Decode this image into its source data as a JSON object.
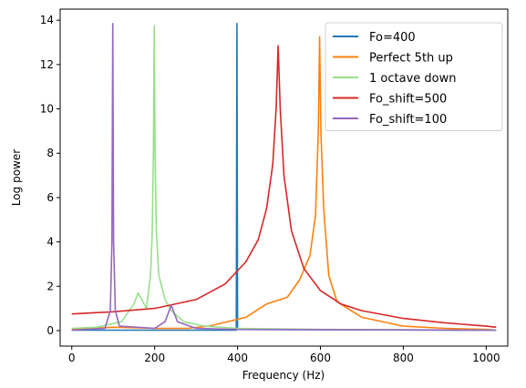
{
  "chart_data": {
    "type": "line",
    "title": "",
    "xlabel": "Frequency (Hz)",
    "ylabel": "Log power",
    "xlim": [
      -28,
      1052
    ],
    "ylim": [
      -0.7,
      14.5
    ],
    "xticks": [
      0,
      200,
      400,
      600,
      800,
      1000
    ],
    "yticks": [
      0,
      2,
      4,
      6,
      8,
      10,
      12,
      14
    ],
    "grid": false,
    "legend_position": "top-right",
    "series": [
      {
        "name": "Fo=400",
        "color": "#1f77b4",
        "points": [
          [
            0,
            0.02
          ],
          [
            397,
            0.02
          ],
          [
            398.5,
            13.85
          ],
          [
            400,
            0.05
          ],
          [
            1024,
            0.02
          ]
        ]
      },
      {
        "name": "Perfect 5th up",
        "color": "#ff7f0e",
        "points": [
          [
            0,
            0.05
          ],
          [
            100,
            0.15
          ],
          [
            200,
            0.1
          ],
          [
            280,
            0.1
          ],
          [
            330,
            0.2
          ],
          [
            420,
            0.6
          ],
          [
            470,
            1.2
          ],
          [
            520,
            1.5
          ],
          [
            550,
            2.3
          ],
          [
            575,
            3.4
          ],
          [
            588,
            5.2
          ],
          [
            595,
            9.0
          ],
          [
            598,
            13.25
          ],
          [
            601,
            9.0
          ],
          [
            608,
            5.5
          ],
          [
            620,
            2.5
          ],
          [
            640,
            1.3
          ],
          [
            700,
            0.6
          ],
          [
            800,
            0.2
          ],
          [
            900,
            0.1
          ],
          [
            1000,
            0.05
          ],
          [
            1024,
            0.02
          ]
        ]
      },
      {
        "name": "1 octave down",
        "color": "#98df8a",
        "points": [
          [
            0,
            0.1
          ],
          [
            60,
            0.15
          ],
          [
            120,
            0.4
          ],
          [
            150,
            1.2
          ],
          [
            160,
            1.7
          ],
          [
            180,
            1.0
          ],
          [
            190,
            2.5
          ],
          [
            194,
            4.3
          ],
          [
            197,
            8.0
          ],
          [
            199,
            13.75
          ],
          [
            201,
            8.0
          ],
          [
            204,
            4.5
          ],
          [
            210,
            2.5
          ],
          [
            225,
            1.4
          ],
          [
            240,
            0.9
          ],
          [
            270,
            0.4
          ],
          [
            320,
            0.2
          ],
          [
            400,
            0.1
          ],
          [
            600,
            0.05
          ],
          [
            1024,
            0.02
          ]
        ]
      },
      {
        "name": "Fo_shift=500",
        "color": "#d62728",
        "points": [
          [
            0,
            0.75
          ],
          [
            100,
            0.85
          ],
          [
            200,
            1.0
          ],
          [
            300,
            1.4
          ],
          [
            370,
            2.1
          ],
          [
            420,
            3.1
          ],
          [
            450,
            4.1
          ],
          [
            470,
            5.5
          ],
          [
            485,
            7.5
          ],
          [
            493,
            10.0
          ],
          [
            498,
            12.85
          ],
          [
            503,
            10.0
          ],
          [
            512,
            7.0
          ],
          [
            530,
            4.5
          ],
          [
            560,
            2.8
          ],
          [
            600,
            1.8
          ],
          [
            650,
            1.2
          ],
          [
            700,
            0.9
          ],
          [
            800,
            0.55
          ],
          [
            900,
            0.35
          ],
          [
            1000,
            0.2
          ],
          [
            1024,
            0.15
          ]
        ]
      },
      {
        "name": "Fo_shift=100",
        "color": "#9467bd",
        "points": [
          [
            0,
            0.02
          ],
          [
            80,
            0.1
          ],
          [
            93,
            0.9
          ],
          [
            97,
            4.0
          ],
          [
            99,
            13.85
          ],
          [
            101,
            4.0
          ],
          [
            105,
            0.9
          ],
          [
            115,
            0.2
          ],
          [
            200,
            0.1
          ],
          [
            225,
            0.4
          ],
          [
            235,
            0.9
          ],
          [
            240,
            1.15
          ],
          [
            245,
            0.9
          ],
          [
            255,
            0.4
          ],
          [
            300,
            0.1
          ],
          [
            400,
            0.05
          ],
          [
            1024,
            0.02
          ]
        ]
      }
    ]
  }
}
